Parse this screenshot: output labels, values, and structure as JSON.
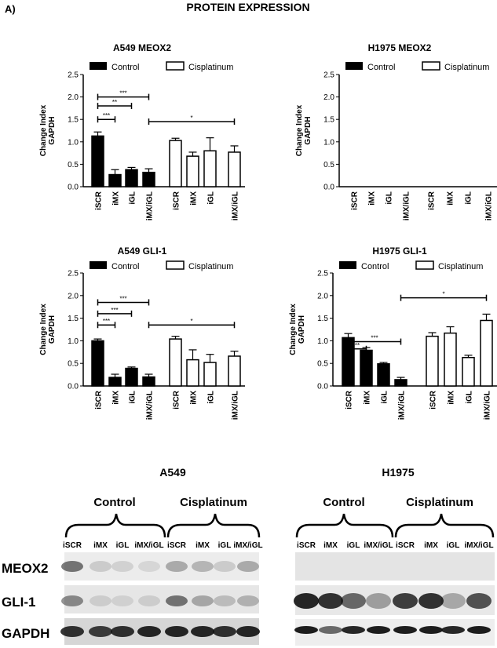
{
  "figure": {
    "panel_label": "A)",
    "title": "PROTEIN EXPRESSION"
  },
  "legend": {
    "control": "Control",
    "treated": "Cisplatinum"
  },
  "chart_data": [
    {
      "type": "bar",
      "title": "A549 MEOX2",
      "ylabel": "Change Index\nGAPDH",
      "ylim": [
        0,
        2.5
      ],
      "yticks": [
        "0.0",
        "0.5",
        "1.0",
        "1.5",
        "2.0",
        "2.5"
      ],
      "legend_position": "top",
      "groups": [
        {
          "name": "Control",
          "categories": [
            "iSCR",
            "iMX",
            "iGL",
            "iMX/iGL"
          ],
          "values": [
            1.13,
            0.27,
            0.38,
            0.32
          ],
          "errors": [
            0.09,
            0.11,
            0.05,
            0.08
          ]
        },
        {
          "name": "Cisplatinum",
          "categories": [
            "iSCR",
            "iMX",
            "iGL",
            "iMX/iGL"
          ],
          "values": [
            1.03,
            0.68,
            0.8,
            0.77
          ],
          "errors": [
            0.05,
            0.09,
            0.29,
            0.14
          ]
        }
      ],
      "significance": [
        {
          "from": 0,
          "to": 1,
          "level": 1.5,
          "stars": "***"
        },
        {
          "from": 0,
          "to": 2,
          "level": 1.8,
          "stars": "**"
        },
        {
          "from": 0,
          "to": 3,
          "level": 2.0,
          "stars": "***"
        },
        {
          "from": 3,
          "to": 7,
          "level": 1.45,
          "stars": "*"
        }
      ]
    },
    {
      "type": "bar",
      "title": "H1975 MEOX2",
      "ylabel": "Change Index\nGAPDH",
      "ylim": [
        0,
        2.5
      ],
      "yticks": [
        "0.0",
        "0.5",
        "1.0",
        "1.5",
        "2.0",
        "2.5"
      ],
      "legend_position": "top",
      "groups": [
        {
          "name": "Control",
          "categories": [
            "iSCR",
            "iMX",
            "iGL",
            "iMX/iGL"
          ],
          "values": [
            0,
            0,
            0,
            0
          ],
          "errors": [
            0,
            0,
            0,
            0
          ]
        },
        {
          "name": "Cisplatinum",
          "categories": [
            "iSCR",
            "iMX",
            "iGL",
            "iMX/iGL"
          ],
          "values": [
            0,
            0,
            0,
            0
          ],
          "errors": [
            0,
            0,
            0,
            0
          ]
        }
      ],
      "significance": []
    },
    {
      "type": "bar",
      "title": "A549 GLI-1",
      "ylabel": "Change Index\nGAPDH",
      "ylim": [
        0,
        2.5
      ],
      "yticks": [
        "0.0",
        "0.5",
        "1.0",
        "1.5",
        "2.0",
        "2.5"
      ],
      "legend_position": "top",
      "groups": [
        {
          "name": "Control",
          "categories": [
            "iSCR",
            "iMX",
            "iGL",
            "iMX/iGL"
          ],
          "values": [
            1.0,
            0.19,
            0.39,
            0.2
          ],
          "errors": [
            0.04,
            0.07,
            0.03,
            0.06
          ]
        },
        {
          "name": "Cisplatinum",
          "categories": [
            "iSCR",
            "iMX",
            "iGL",
            "iMX/iGL"
          ],
          "values": [
            1.04,
            0.58,
            0.52,
            0.66
          ],
          "errors": [
            0.06,
            0.22,
            0.18,
            0.11
          ]
        }
      ],
      "significance": [
        {
          "from": 0,
          "to": 1,
          "level": 1.35,
          "stars": "***"
        },
        {
          "from": 0,
          "to": 2,
          "level": 1.6,
          "stars": "***"
        },
        {
          "from": 0,
          "to": 3,
          "level": 1.85,
          "stars": "***"
        },
        {
          "from": 3,
          "to": 7,
          "level": 1.35,
          "stars": "*"
        }
      ]
    },
    {
      "type": "bar",
      "title": "H1975 GLI-1",
      "ylabel": "Change Index\nGAPDH",
      "ylim": [
        0,
        2.5
      ],
      "yticks": [
        "0.0",
        "0.5",
        "1.0",
        "1.5",
        "2.0",
        "2.5"
      ],
      "legend_position": "top",
      "groups": [
        {
          "name": "Control",
          "categories": [
            "iSCR",
            "iMX",
            "iGL",
            "iMX/iGL"
          ],
          "values": [
            1.07,
            0.79,
            0.49,
            0.14
          ],
          "errors": [
            0.09,
            0.06,
            0.03,
            0.05
          ]
        },
        {
          "name": "Cisplatinum",
          "categories": [
            "iSCR",
            "iMX",
            "iGL",
            "iMX/iGL"
          ],
          "values": [
            1.1,
            1.17,
            0.63,
            1.45
          ],
          "errors": [
            0.08,
            0.14,
            0.05,
            0.14
          ]
        }
      ],
      "significance": [
        {
          "from": 0,
          "to": 1,
          "level": 0.82,
          "stars": "**"
        },
        {
          "from": 0,
          "to": 3,
          "level": 0.98,
          "stars": "***"
        },
        {
          "from": 3,
          "to": 7,
          "level": 1.95,
          "stars": "*"
        }
      ]
    }
  ],
  "blots": [
    {
      "title": "A549",
      "group_labels": [
        "Control",
        "Cisplatinum"
      ],
      "lanes": [
        "iSCR",
        "iMX",
        "iGL",
        "iMX/iGL",
        "iSCR",
        "iMX",
        "iGL",
        "iMX/iGL"
      ]
    },
    {
      "title": "H1975",
      "group_labels": [
        "Control",
        "Cisplatinum"
      ],
      "lanes": [
        "iSCR",
        "iMX",
        "iGL",
        "iMX/iGL",
        "iSCR",
        "iMX",
        "iGL",
        "iMX/iGL"
      ]
    }
  ],
  "blot_rows": [
    "MEOX2",
    "GLI-1",
    "GAPDH"
  ]
}
